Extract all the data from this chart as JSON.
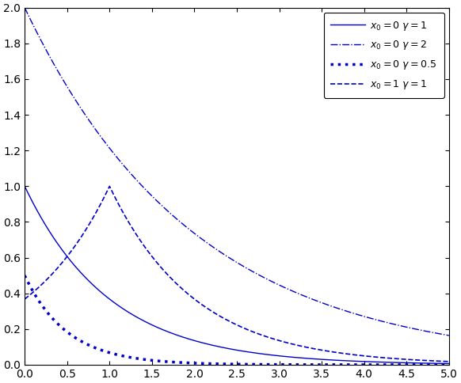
{
  "color": "#0000CC",
  "xlim": [
    0,
    5
  ],
  "ylim": [
    0,
    2
  ],
  "xticks": [
    0,
    0.5,
    1.0,
    1.5,
    2.0,
    2.5,
    3.0,
    3.5,
    4.0,
    4.5,
    5.0
  ],
  "yticks": [
    0,
    0.2,
    0.4,
    0.6,
    0.8,
    1.0,
    1.2,
    1.4,
    1.6,
    1.8,
    2.0
  ],
  "curves": [
    {
      "x0": 0,
      "gamma": 1,
      "linestyle": "-",
      "linewidth": 1.0,
      "label": "$x_0=0$ $\\gamma=1$"
    },
    {
      "x0": 0,
      "gamma": 2,
      "linestyle": "-.",
      "linewidth": 1.0,
      "label": "$x_0=0$ $\\gamma=2$"
    },
    {
      "x0": 0,
      "gamma": 0.5,
      "linestyle": ":",
      "linewidth": 2.5,
      "label": "$x_0=0$ $\\gamma=0.5$"
    },
    {
      "x0": 1,
      "gamma": 1,
      "linestyle": "--",
      "linewidth": 1.2,
      "label": "$x_0=1$ $\\gamma=1$"
    }
  ],
  "legend_loc": "upper right",
  "figsize": [
    5.82,
    4.84
  ],
  "dpi": 100
}
